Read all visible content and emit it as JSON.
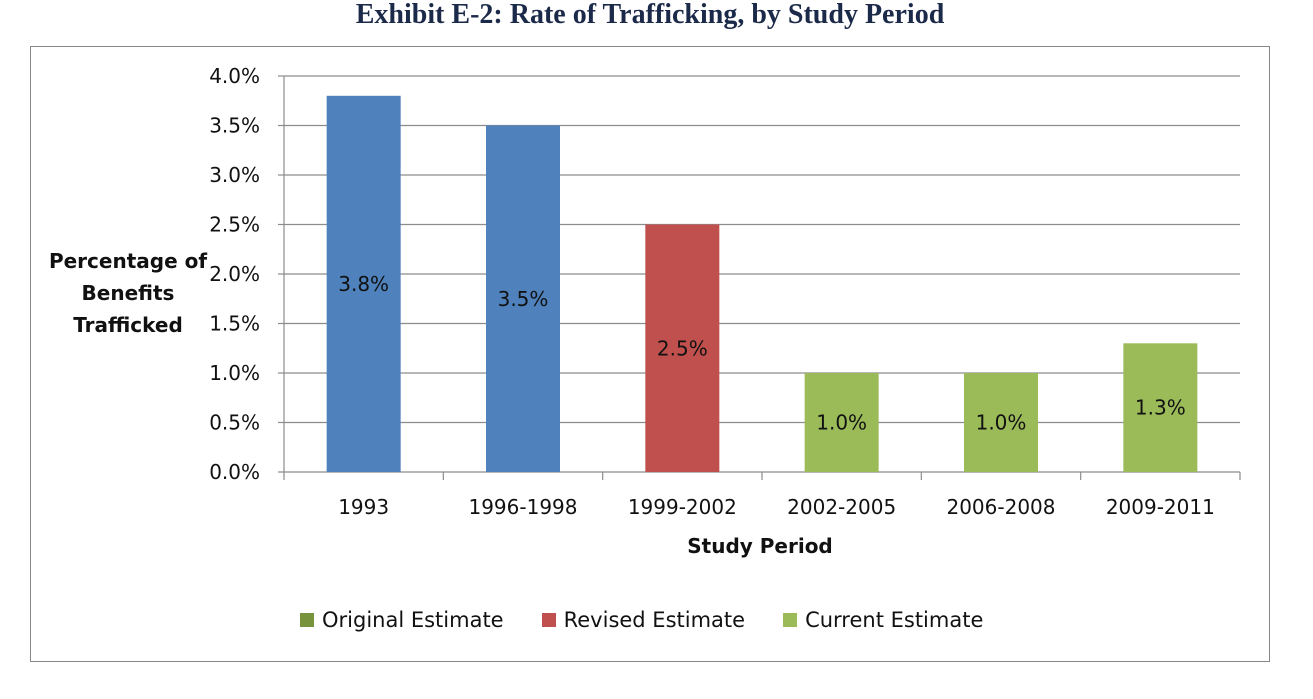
{
  "chart_data": {
    "type": "bar",
    "title": "Exhibit E-2: Rate of Trafficking, by Study Period",
    "xlabel": "Study Period",
    "ylabel": "Percentage of Benefits Trafficked",
    "ylim": [
      0,
      4.0
    ],
    "ytick_step": 0.5,
    "ytick_format": "percent_1dp",
    "grid": true,
    "legend_placement": "bottom",
    "categories": [
      "1993",
      "1996-1998",
      "1999-2002",
      "2002-2005",
      "2006-2008",
      "2009-2011"
    ],
    "values": [
      3.8,
      3.5,
      2.5,
      1.0,
      1.0,
      1.3
    ],
    "data_labels": [
      "3.8%",
      "3.5%",
      "2.5%",
      "1.0%",
      "1.0%",
      "1.3%"
    ],
    "bar_series": [
      "Original Estimate",
      "Original Estimate",
      "Revised Estimate",
      "Current Estimate",
      "Current Estimate",
      "Current Estimate"
    ],
    "bar_colors": [
      "#4f81bd",
      "#4f81bd",
      "#c0504d",
      "#9bbb59",
      "#9bbb59",
      "#9bbb59"
    ],
    "legend": [
      {
        "name": "Original Estimate",
        "color": "#77933c"
      },
      {
        "name": "Revised Estimate",
        "color": "#c0504d"
      },
      {
        "name": "Current Estimate",
        "color": "#9bbb59"
      }
    ]
  }
}
